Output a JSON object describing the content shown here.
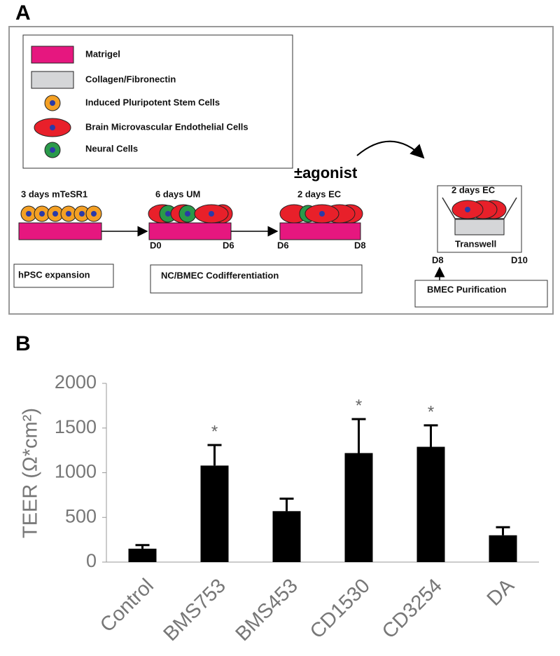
{
  "panel_a": {
    "label": "A",
    "legend": [
      "Matrigel",
      "Collagen/Fibronectin",
      "Induced Pluripotent Stem Cells",
      "Brain Microvascular Endothelial Cells",
      "Neural Cells"
    ],
    "agonist": "±agonist",
    "stages": [
      {
        "title": "3 days mTeSR1"
      },
      {
        "title": "6 days UM",
        "start": "D0",
        "end": "D6"
      },
      {
        "title": "2 days EC",
        "start": "D6",
        "end": "D8"
      }
    ],
    "transwell": {
      "title": "2 days EC",
      "label": "Transwell",
      "start": "D8",
      "end": "D10"
    },
    "phases": [
      "hPSC expansion",
      "NC/BMEC Codifferentiation",
      "BMEC Purification"
    ]
  },
  "chart_data": {
    "type": "bar",
    "panel_label": "B",
    "y_label": "TEER (Ω*cm²)",
    "categories": [
      "Control",
      "BMS753",
      "BMS453",
      "CD1530",
      "CD3254",
      "DA"
    ],
    "values": [
      150,
      1080,
      570,
      1220,
      1290,
      300
    ],
    "errors": [
      40,
      230,
      140,
      380,
      240,
      90
    ],
    "significance": [
      null,
      "*",
      null,
      "*",
      "*",
      null
    ],
    "color": "#000000",
    "ylim": [
      0,
      2000
    ],
    "yticks": [
      0,
      500,
      1000,
      1500,
      2000
    ],
    "grid": false
  }
}
